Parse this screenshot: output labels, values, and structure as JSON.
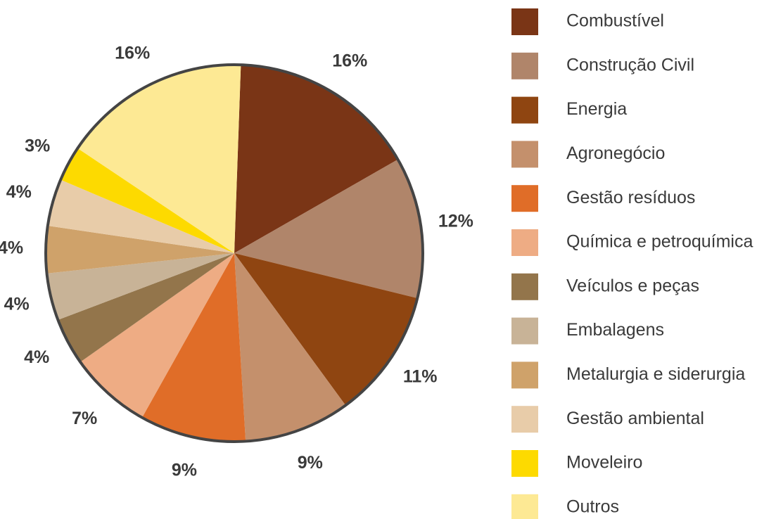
{
  "chart_data": {
    "type": "pie",
    "categories": [
      "Combustível",
      "Construção Civil",
      "Energia",
      "Agronegócio",
      "Gestão resíduos",
      "Química e petroquímica",
      "Veículos e peças",
      "Embalagens",
      "Metalurgia e siderurgia",
      "Gestão ambiental",
      "Moveleiro",
      "Outros"
    ],
    "values": [
      16,
      12,
      11,
      9,
      9,
      7,
      4,
      4,
      4,
      4,
      3,
      16
    ],
    "value_labels": [
      "16%",
      "12%",
      "11%",
      "9%",
      "9%",
      "7%",
      "4%",
      "4%",
      "4%",
      "4%",
      "3%",
      "16%"
    ],
    "colors": [
      "#7a3516",
      "#b0856a",
      "#8f4511",
      "#c4906c",
      "#e06d28",
      "#eeac84",
      "#93754b",
      "#c8b397",
      "#cfa26a",
      "#e8cca9",
      "#fdda00",
      "#fde994"
    ],
    "legend": "right"
  }
}
